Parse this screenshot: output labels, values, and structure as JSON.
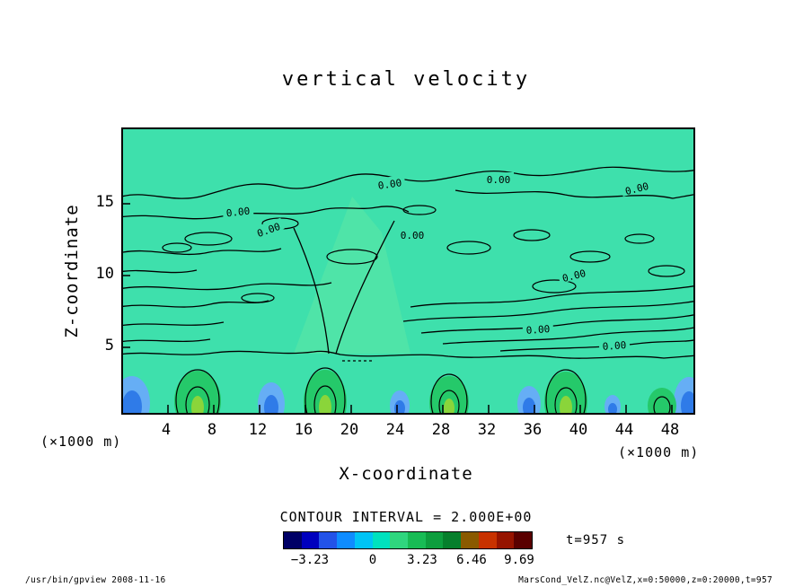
{
  "header": {
    "title": "vertical velocity"
  },
  "chart_data": {
    "type": "heatmap",
    "title": "vertical velocity",
    "xlabel": "X-coordinate",
    "ylabel": "Z-coordinate",
    "x_ticks": [
      "4",
      "8",
      "12",
      "16",
      "20",
      "24",
      "28",
      "32",
      "36",
      "40",
      "44",
      "48"
    ],
    "x_tick_values": [
      4,
      8,
      12,
      16,
      20,
      24,
      28,
      32,
      36,
      40,
      44,
      48
    ],
    "y_ticks": [
      "15",
      "10",
      "5"
    ],
    "y_tick_values": [
      15,
      10,
      5
    ],
    "x_unit_left": "(×1000 m)",
    "x_unit_right": "(×1000 m)",
    "x_range_m": [
      0,
      50000
    ],
    "z_range_m": [
      0,
      20000
    ],
    "time_label": "t=957 s",
    "time_s": 957,
    "contour_interval_label": "CONTOUR INTERVAL = 2.000E+00",
    "contour_interval": 2.0,
    "zero_contour_label": "0.00",
    "labeled_contour_level": 0.0,
    "grid": false,
    "legend_position": "bottom",
    "colorbar": {
      "tick_labels": [
        "−3.23",
        "0",
        "3.23",
        "6.46",
        "9.69"
      ],
      "tick_values": [
        -3.23,
        0,
        3.23,
        6.46,
        9.69
      ],
      "colors": [
        "#000066",
        "#0000BE",
        "#2353E8",
        "#0F8CFF",
        "#00C4F5",
        "#00E2BE",
        "#2FD67E",
        "#18BC55",
        "#0D9E3E",
        "#067F2C",
        "#8A5A00",
        "#C83200",
        "#961400",
        "#5A0000"
      ]
    },
    "colors": {
      "plot_background": "#3EE0AC",
      "plot_background_light": "#63E8A4",
      "contour_line": "#000000",
      "downdraft_outer": "#66AEF5",
      "downdraft_inner": "#2F7BE8",
      "updraft_outer": "#25C96A",
      "updraft_core": "#8AD53A"
    }
  },
  "footer": {
    "left": "/usr/bin/gpview  2008-11-16",
    "right": "MarsCond_VelZ.nc@VelZ,x=0:50000,z=0:20000,t=957"
  }
}
